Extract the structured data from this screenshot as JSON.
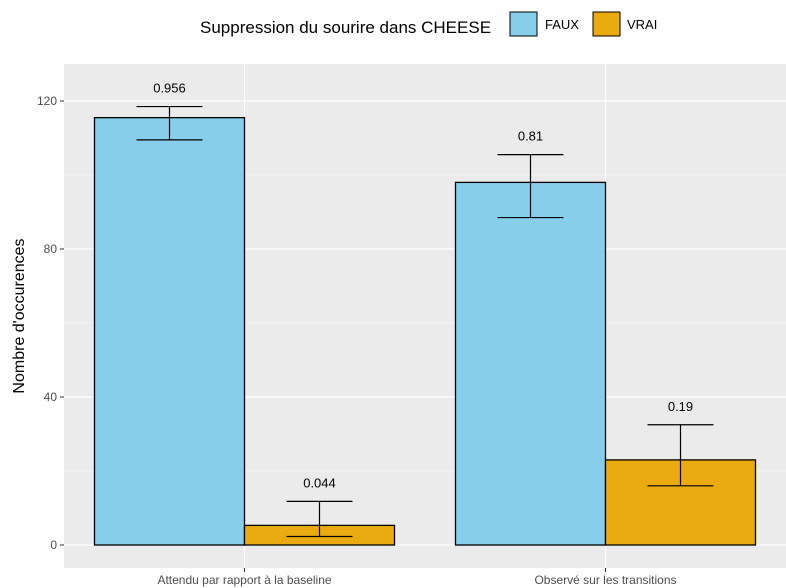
{
  "chart_data": {
    "type": "bar",
    "legend_title": "Suppression du sourire dans CHEESE",
    "legend_position": "top",
    "xlabel": "",
    "ylabel": "Nombre d'occurences",
    "ylim": [
      -3,
      130
    ],
    "yticks": [
      0,
      40,
      80,
      120
    ],
    "grid": true,
    "categories": [
      "Attendu par rapport à la baseline",
      "Observé sur les transitions"
    ],
    "series": [
      {
        "name": "FAUX",
        "color": "#87ceeb",
        "values": [
          115.5,
          98
        ],
        "error_low": [
          109.5,
          88.5
        ],
        "error_high": [
          118.5,
          105.5
        ],
        "labels": [
          "0.956",
          "0.81"
        ]
      },
      {
        "name": "VRAI",
        "color": "#eaab10",
        "values": [
          5.3,
          23
        ],
        "error_low": [
          2.3,
          16
        ],
        "error_high": [
          11.8,
          32.5
        ],
        "labels": [
          "0.044",
          "0.19"
        ]
      }
    ]
  }
}
